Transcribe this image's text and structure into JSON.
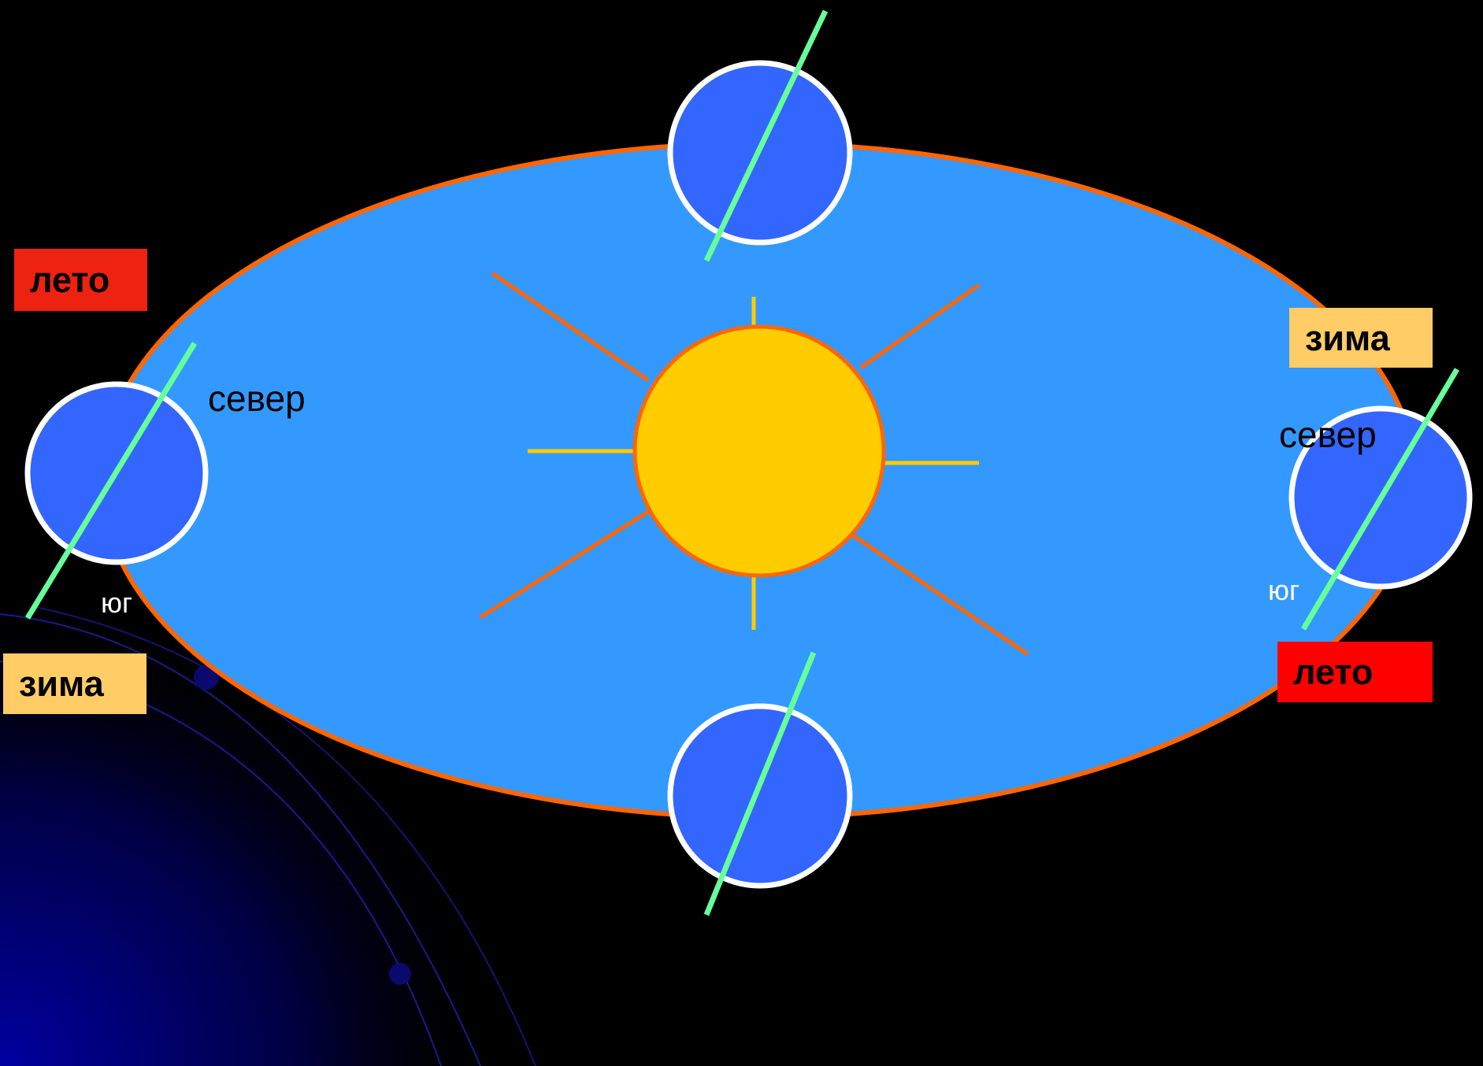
{
  "colors": {
    "background": "#000000",
    "orbit_fill": "#3399FF",
    "orbit_stroke": "#FF6600",
    "sun_fill": "#FFCC00",
    "sun_stroke": "#FF6600",
    "sun_ray_long": "#FF6600",
    "sun_ray_short": "#FFCC00",
    "earth_fill": "#3366FF",
    "earth_stroke": "#FFFFFF",
    "axis": "#66FF99",
    "summer_box": "#EE2211",
    "summer_box_right": "#FF0000",
    "winter_box": "#FFCC66",
    "decor_orbit_lines": "#1A1A8C"
  },
  "labels": {
    "left_summer": "лето",
    "left_winter": "зима",
    "right_winter": "зима",
    "right_summer": "лето",
    "left_north": "север",
    "left_south": "юг",
    "right_north": "север",
    "right_south": "юг"
  }
}
